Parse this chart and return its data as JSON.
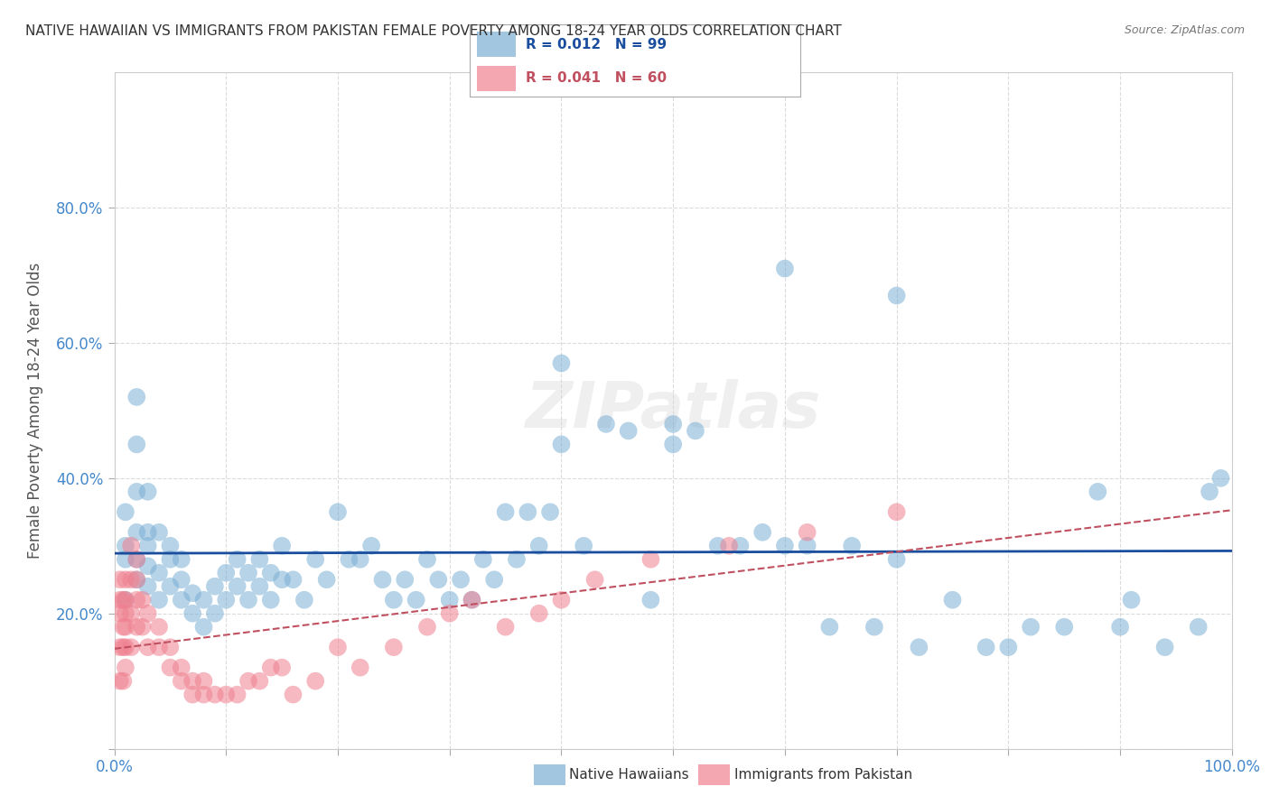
{
  "title": "NATIVE HAWAIIAN VS IMMIGRANTS FROM PAKISTAN FEMALE POVERTY AMONG 18-24 YEAR OLDS CORRELATION CHART",
  "source": "Source: ZipAtlas.com",
  "ylabel": "Female Poverty Among 18-24 Year Olds",
  "xlabel": "",
  "xlim": [
    0,
    1.0
  ],
  "ylim": [
    0,
    1.0
  ],
  "xticks": [
    0.0,
    0.1,
    0.2,
    0.3,
    0.4,
    0.5,
    0.6,
    0.7,
    0.8,
    0.9,
    1.0
  ],
  "yticks": [
    0.0,
    0.2,
    0.4,
    0.6,
    0.8
  ],
  "xticklabels": [
    "0.0%",
    "",
    "",
    "",
    "",
    "",
    "",
    "",
    "",
    "",
    "100.0%"
  ],
  "yticklabels": [
    "",
    "20.0%",
    "40.0%",
    "60.0%",
    "80.0%"
  ],
  "legend_entries": [
    {
      "label": "R = 0.012   N = 99",
      "color": "#a8c4e0"
    },
    {
      "label": "R = 0.041   N = 60",
      "color": "#f0a0b0"
    }
  ],
  "blue_color": "#7bafd4",
  "pink_color": "#f08090",
  "blue_line_color": "#1a4d9e",
  "pink_line_color": "#c05060",
  "watermark": "ZIPatlas",
  "title_color": "#333333",
  "axis_label_color": "#555555",
  "tick_label_color": "#4488cc",
  "grid_color": "#cccccc",
  "blue_r": 0.012,
  "blue_n": 99,
  "pink_r": 0.041,
  "pink_n": 60,
  "blue_scatter_x": [
    0.01,
    0.01,
    0.01,
    0.01,
    0.02,
    0.02,
    0.02,
    0.02,
    0.02,
    0.02,
    0.03,
    0.03,
    0.03,
    0.03,
    0.03,
    0.04,
    0.04,
    0.04,
    0.05,
    0.05,
    0.05,
    0.06,
    0.06,
    0.06,
    0.07,
    0.07,
    0.08,
    0.08,
    0.09,
    0.09,
    0.1,
    0.1,
    0.11,
    0.11,
    0.12,
    0.12,
    0.13,
    0.13,
    0.14,
    0.14,
    0.15,
    0.15,
    0.16,
    0.17,
    0.18,
    0.19,
    0.2,
    0.21,
    0.22,
    0.23,
    0.24,
    0.25,
    0.26,
    0.27,
    0.28,
    0.29,
    0.3,
    0.31,
    0.32,
    0.33,
    0.34,
    0.35,
    0.36,
    0.37,
    0.38,
    0.39,
    0.4,
    0.42,
    0.44,
    0.46,
    0.48,
    0.5,
    0.52,
    0.54,
    0.56,
    0.58,
    0.6,
    0.62,
    0.64,
    0.66,
    0.68,
    0.7,
    0.72,
    0.75,
    0.78,
    0.82,
    0.85,
    0.88,
    0.91,
    0.94,
    0.97,
    0.98,
    0.99,
    0.4,
    0.5,
    0.6,
    0.7,
    0.8,
    0.9
  ],
  "blue_scatter_y": [
    0.22,
    0.28,
    0.3,
    0.35,
    0.25,
    0.28,
    0.32,
    0.38,
    0.45,
    0.52,
    0.24,
    0.27,
    0.3,
    0.32,
    0.38,
    0.22,
    0.26,
    0.32,
    0.24,
    0.28,
    0.3,
    0.22,
    0.25,
    0.28,
    0.2,
    0.23,
    0.18,
    0.22,
    0.2,
    0.24,
    0.22,
    0.26,
    0.24,
    0.28,
    0.22,
    0.26,
    0.24,
    0.28,
    0.22,
    0.26,
    0.25,
    0.3,
    0.25,
    0.22,
    0.28,
    0.25,
    0.35,
    0.28,
    0.28,
    0.3,
    0.25,
    0.22,
    0.25,
    0.22,
    0.28,
    0.25,
    0.22,
    0.25,
    0.22,
    0.28,
    0.25,
    0.35,
    0.28,
    0.35,
    0.3,
    0.35,
    0.45,
    0.3,
    0.48,
    0.47,
    0.22,
    0.45,
    0.47,
    0.3,
    0.3,
    0.32,
    0.3,
    0.3,
    0.18,
    0.3,
    0.18,
    0.28,
    0.15,
    0.22,
    0.15,
    0.18,
    0.18,
    0.38,
    0.22,
    0.15,
    0.18,
    0.38,
    0.4,
    0.57,
    0.48,
    0.71,
    0.67,
    0.15,
    0.18
  ],
  "pink_scatter_x": [
    0.005,
    0.005,
    0.005,
    0.005,
    0.005,
    0.008,
    0.008,
    0.008,
    0.008,
    0.01,
    0.01,
    0.01,
    0.01,
    0.01,
    0.01,
    0.015,
    0.015,
    0.015,
    0.015,
    0.02,
    0.02,
    0.02,
    0.02,
    0.025,
    0.025,
    0.03,
    0.03,
    0.04,
    0.04,
    0.05,
    0.05,
    0.06,
    0.06,
    0.07,
    0.07,
    0.08,
    0.08,
    0.09,
    0.1,
    0.11,
    0.12,
    0.13,
    0.14,
    0.15,
    0.16,
    0.18,
    0.2,
    0.22,
    0.25,
    0.28,
    0.3,
    0.32,
    0.35,
    0.38,
    0.4,
    0.43,
    0.48,
    0.55,
    0.62,
    0.7
  ],
  "pink_scatter_y": [
    0.2,
    0.22,
    0.25,
    0.15,
    0.1,
    0.18,
    0.22,
    0.15,
    0.1,
    0.25,
    0.22,
    0.2,
    0.18,
    0.15,
    0.12,
    0.3,
    0.25,
    0.2,
    0.15,
    0.28,
    0.25,
    0.22,
    0.18,
    0.22,
    0.18,
    0.2,
    0.15,
    0.18,
    0.15,
    0.15,
    0.12,
    0.12,
    0.1,
    0.1,
    0.08,
    0.1,
    0.08,
    0.08,
    0.08,
    0.08,
    0.1,
    0.1,
    0.12,
    0.12,
    0.08,
    0.1,
    0.15,
    0.12,
    0.15,
    0.18,
    0.2,
    0.22,
    0.18,
    0.2,
    0.22,
    0.25,
    0.28,
    0.3,
    0.32,
    0.35
  ]
}
